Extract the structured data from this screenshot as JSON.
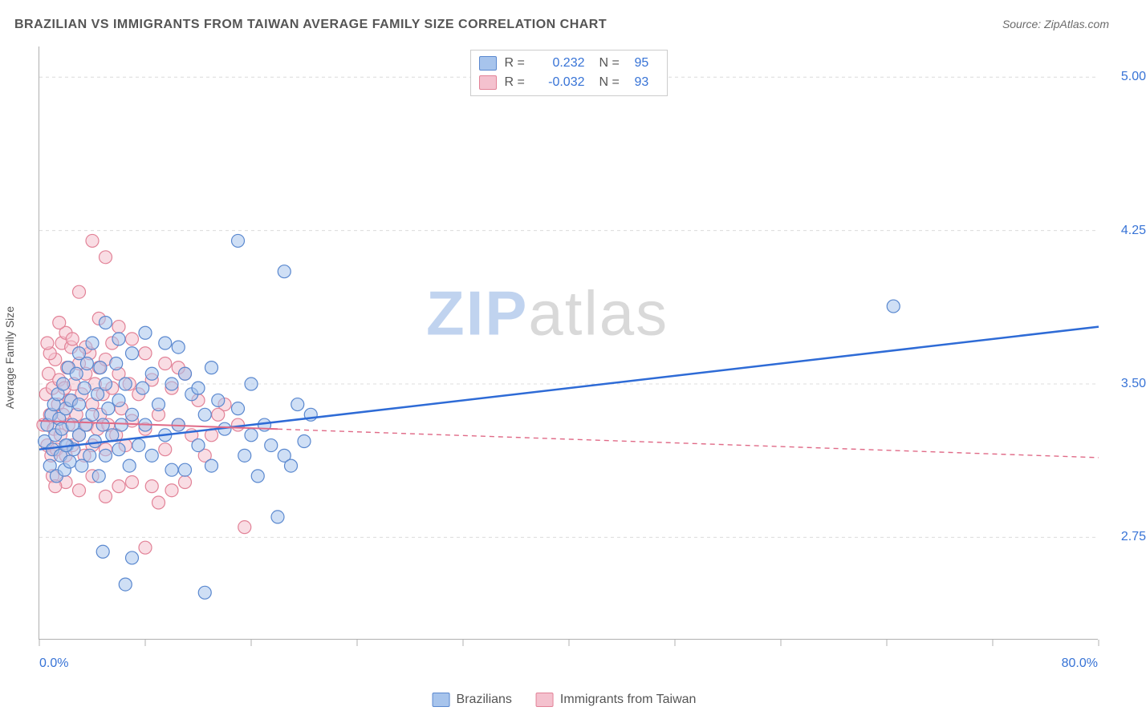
{
  "title": "BRAZILIAN VS IMMIGRANTS FROM TAIWAN AVERAGE FAMILY SIZE CORRELATION CHART",
  "source_label": "Source: ZipAtlas.com",
  "ylabel": "Average Family Size",
  "watermark": {
    "part1": "ZIP",
    "part2": "atlas"
  },
  "chart": {
    "type": "scatter",
    "xlim": [
      0,
      80
    ],
    "ylim": [
      2.25,
      5.15
    ],
    "x_axis_label_min": "0.0%",
    "x_axis_label_max": "80.0%",
    "x_tick_positions": [
      0,
      8,
      16,
      24,
      32,
      40,
      48,
      56,
      64,
      72,
      80
    ],
    "y_gridlines": [
      2.75,
      3.5,
      4.25,
      5.0
    ],
    "y_tick_labels": [
      "2.75",
      "3.50",
      "4.25",
      "5.00"
    ],
    "grid_color": "#dcdcdc",
    "background_color": "#ffffff",
    "axis_color": "#b0b0b0",
    "tick_label_color": "#3773d6",
    "marker_radius": 8,
    "marker_opacity": 0.55,
    "marker_stroke_width": 1.2,
    "series": [
      {
        "name": "Brazilians",
        "color_fill": "#a7c4ec",
        "color_stroke": "#5a88cf",
        "R": "0.232",
        "N": "95",
        "trend_line": {
          "x1": 0,
          "y1": 3.18,
          "x2": 80,
          "y2": 3.78,
          "color": "#2e6bd6",
          "width": 2.5,
          "dash": "",
          "solid_until_x": 80
        },
        "points": [
          [
            0.4,
            3.22
          ],
          [
            0.6,
            3.3
          ],
          [
            0.8,
            3.1
          ],
          [
            0.9,
            3.35
          ],
          [
            1.0,
            3.18
          ],
          [
            1.1,
            3.4
          ],
          [
            1.2,
            3.25
          ],
          [
            1.3,
            3.05
          ],
          [
            1.4,
            3.45
          ],
          [
            1.5,
            3.33
          ],
          [
            1.6,
            3.15
          ],
          [
            1.7,
            3.28
          ],
          [
            1.8,
            3.5
          ],
          [
            1.9,
            3.08
          ],
          [
            2.0,
            3.38
          ],
          [
            2.1,
            3.2
          ],
          [
            2.2,
            3.58
          ],
          [
            2.3,
            3.12
          ],
          [
            2.4,
            3.42
          ],
          [
            2.5,
            3.3
          ],
          [
            2.6,
            3.18
          ],
          [
            2.8,
            3.55
          ],
          [
            3.0,
            3.25
          ],
          [
            3.0,
            3.65
          ],
          [
            3.2,
            3.1
          ],
          [
            3.4,
            3.48
          ],
          [
            3.5,
            3.3
          ],
          [
            3.6,
            3.6
          ],
          [
            3.8,
            3.15
          ],
          [
            4.0,
            3.35
          ],
          [
            4.0,
            3.7
          ],
          [
            4.2,
            3.22
          ],
          [
            4.4,
            3.45
          ],
          [
            4.5,
            3.05
          ],
          [
            4.6,
            3.58
          ],
          [
            4.8,
            3.3
          ],
          [
            5.0,
            3.15
          ],
          [
            5.0,
            3.5
          ],
          [
            5.2,
            3.38
          ],
          [
            5.5,
            3.25
          ],
          [
            5.8,
            3.6
          ],
          [
            6.0,
            3.18
          ],
          [
            6.0,
            3.42
          ],
          [
            6.2,
            3.3
          ],
          [
            6.5,
            3.5
          ],
          [
            6.8,
            3.1
          ],
          [
            7.0,
            3.35
          ],
          [
            7.0,
            3.65
          ],
          [
            7.5,
            3.2
          ],
          [
            7.8,
            3.48
          ],
          [
            8.0,
            3.3
          ],
          [
            8.5,
            3.15
          ],
          [
            8.5,
            3.55
          ],
          [
            9.0,
            3.4
          ],
          [
            9.5,
            3.25
          ],
          [
            10.0,
            3.08
          ],
          [
            10.0,
            3.5
          ],
          [
            10.5,
            3.3
          ],
          [
            11.0,
            3.08
          ],
          [
            11.5,
            3.45
          ],
          [
            12.0,
            3.2
          ],
          [
            12.5,
            3.35
          ],
          [
            13.0,
            3.1
          ],
          [
            14.0,
            3.28
          ],
          [
            15.0,
            4.2
          ],
          [
            15.5,
            3.15
          ],
          [
            16.0,
            3.25
          ],
          [
            16.5,
            3.05
          ],
          [
            17.0,
            3.3
          ],
          [
            17.5,
            3.2
          ],
          [
            18.0,
            2.85
          ],
          [
            18.5,
            3.15
          ],
          [
            19.0,
            3.1
          ],
          [
            19.5,
            3.4
          ],
          [
            20.0,
            3.22
          ],
          [
            20.5,
            3.35
          ],
          [
            18.5,
            4.05
          ],
          [
            15.0,
            3.38
          ],
          [
            13.5,
            3.42
          ],
          [
            16.0,
            3.5
          ],
          [
            11.0,
            3.55
          ],
          [
            12.0,
            3.48
          ],
          [
            13.0,
            3.58
          ],
          [
            7.0,
            2.65
          ],
          [
            4.8,
            2.68
          ],
          [
            12.5,
            2.48
          ],
          [
            6.5,
            2.52
          ],
          [
            9.5,
            3.7
          ],
          [
            64.5,
            3.88
          ],
          [
            5.0,
            3.8
          ],
          [
            6.0,
            3.72
          ],
          [
            8.0,
            3.75
          ],
          [
            10.5,
            3.68
          ],
          [
            3.0,
            3.4
          ],
          [
            2.0,
            3.2
          ]
        ]
      },
      {
        "name": "Immigrants from Taiwan",
        "color_fill": "#f4c1ce",
        "color_stroke": "#e28297",
        "R": "-0.032",
        "N": "93",
        "trend_line": {
          "x1": 0,
          "y1": 3.32,
          "x2": 80,
          "y2": 3.14,
          "color": "#e06a87",
          "width": 2,
          "dash": "6 5",
          "solid_until_x": 18
        },
        "points": [
          [
            0.3,
            3.3
          ],
          [
            0.5,
            3.45
          ],
          [
            0.6,
            3.2
          ],
          [
            0.7,
            3.55
          ],
          [
            0.8,
            3.35
          ],
          [
            0.9,
            3.15
          ],
          [
            1.0,
            3.48
          ],
          [
            1.1,
            3.28
          ],
          [
            1.2,
            3.62
          ],
          [
            1.3,
            3.18
          ],
          [
            1.4,
            3.4
          ],
          [
            1.5,
            3.52
          ],
          [
            1.6,
            3.25
          ],
          [
            1.7,
            3.7
          ],
          [
            1.8,
            3.35
          ],
          [
            1.9,
            3.48
          ],
          [
            2.0,
            3.15
          ],
          [
            2.1,
            3.58
          ],
          [
            2.2,
            3.3
          ],
          [
            2.3,
            3.42
          ],
          [
            2.4,
            3.68
          ],
          [
            2.5,
            3.2
          ],
          [
            2.6,
            3.5
          ],
          [
            2.8,
            3.35
          ],
          [
            3.0,
            3.6
          ],
          [
            3.0,
            3.25
          ],
          [
            3.2,
            3.45
          ],
          [
            3.4,
            3.15
          ],
          [
            3.5,
            3.55
          ],
          [
            3.6,
            3.3
          ],
          [
            3.8,
            3.65
          ],
          [
            4.0,
            3.4
          ],
          [
            4.0,
            3.2
          ],
          [
            4.2,
            3.5
          ],
          [
            4.4,
            3.28
          ],
          [
            4.5,
            3.58
          ],
          [
            4.6,
            3.35
          ],
          [
            4.8,
            3.45
          ],
          [
            5.0,
            3.18
          ],
          [
            5.0,
            3.62
          ],
          [
            5.2,
            3.3
          ],
          [
            5.5,
            3.48
          ],
          [
            5.8,
            3.25
          ],
          [
            6.0,
            3.55
          ],
          [
            6.2,
            3.38
          ],
          [
            6.5,
            3.2
          ],
          [
            6.8,
            3.5
          ],
          [
            7.0,
            3.32
          ],
          [
            7.5,
            3.45
          ],
          [
            8.0,
            3.28
          ],
          [
            8.5,
            3.52
          ],
          [
            9.0,
            3.35
          ],
          [
            9.5,
            3.18
          ],
          [
            10.0,
            3.48
          ],
          [
            10.5,
            3.3
          ],
          [
            11.0,
            3.55
          ],
          [
            11.5,
            3.25
          ],
          [
            12.0,
            3.42
          ],
          [
            4.0,
            4.2
          ],
          [
            5.0,
            4.12
          ],
          [
            3.0,
            3.95
          ],
          [
            4.5,
            3.82
          ],
          [
            6.0,
            3.78
          ],
          [
            7.0,
            3.72
          ],
          [
            2.0,
            3.75
          ],
          [
            3.5,
            3.68
          ],
          [
            5.5,
            3.7
          ],
          [
            8.0,
            3.65
          ],
          [
            1.5,
            3.8
          ],
          [
            2.5,
            3.72
          ],
          [
            9.0,
            2.92
          ],
          [
            8.0,
            2.7
          ],
          [
            7.0,
            3.02
          ],
          [
            6.0,
            3.0
          ],
          [
            5.0,
            2.95
          ],
          [
            4.0,
            3.05
          ],
          [
            10.0,
            2.98
          ],
          [
            8.5,
            3.0
          ],
          [
            2.0,
            3.02
          ],
          [
            3.0,
            2.98
          ],
          [
            9.5,
            3.6
          ],
          [
            10.5,
            3.58
          ],
          [
            11.0,
            3.02
          ],
          [
            1.0,
            3.05
          ],
          [
            1.2,
            3.0
          ],
          [
            0.8,
            3.65
          ],
          [
            0.6,
            3.7
          ],
          [
            15.5,
            2.8
          ],
          [
            15.0,
            3.3
          ],
          [
            13.0,
            3.25
          ],
          [
            14.0,
            3.4
          ],
          [
            12.5,
            3.15
          ],
          [
            13.5,
            3.35
          ]
        ]
      }
    ]
  },
  "legend_bottom": [
    {
      "label": "Brazilians",
      "fill": "#a7c4ec",
      "stroke": "#5a88cf"
    },
    {
      "label": "Immigrants from Taiwan",
      "fill": "#f4c1ce",
      "stroke": "#e28297"
    }
  ]
}
